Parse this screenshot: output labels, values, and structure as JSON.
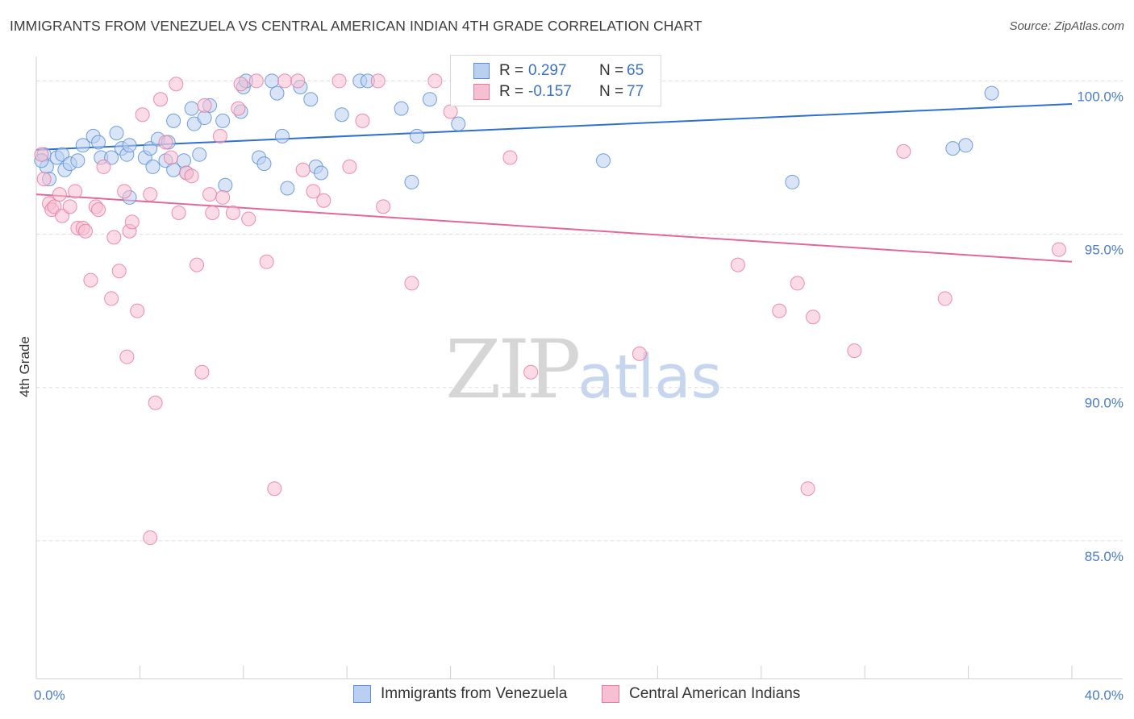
{
  "title": "IMMIGRANTS FROM VENEZUELA VS CENTRAL AMERICAN INDIAN 4TH GRADE CORRELATION CHART",
  "source": "Source: ZipAtlas.com",
  "watermark": {
    "zip": "ZIP",
    "atlas": "atlas"
  },
  "legend": {
    "rows": [
      {
        "r_label": "R =",
        "r_value": "0.297",
        "n_label": "N =",
        "n_value": "65",
        "color": "#5b8fd9",
        "fill": "#b9d0f1"
      },
      {
        "r_label": "R =",
        "r_value": "-0.157",
        "n_label": "N =",
        "n_value": "77",
        "color": "#e87aa0",
        "fill": "#f7c0d2"
      }
    ]
  },
  "bottom_legend": [
    {
      "label": "Immigrants from Venezuela",
      "color": "#5b8fd9",
      "fill": "#b9d0f1"
    },
    {
      "label": "Central American Indians",
      "color": "#e87aa0",
      "fill": "#f7c0d2"
    }
  ],
  "chart_data": {
    "type": "scatter",
    "title": "IMMIGRANTS FROM VENEZUELA VS CENTRAL AMERICAN INDIAN 4TH GRADE CORRELATION CHART",
    "xlabel": "",
    "ylabel": "4th Grade",
    "xlim": [
      0,
      40
    ],
    "ylim": [
      80.5,
      100.8
    ],
    "x_tick_labels": [
      {
        "value": 0,
        "label": "0.0%"
      },
      {
        "value": 40,
        "label": "40.0%"
      }
    ],
    "y_tick_labels": [
      {
        "value": 100,
        "label": "100.0%"
      },
      {
        "value": 95,
        "label": "95.0%"
      },
      {
        "value": 90,
        "label": "90.0%"
      },
      {
        "value": 85,
        "label": "85.0%"
      }
    ],
    "grid": true,
    "legend_position": "top-center",
    "series": [
      {
        "name": "Immigrants from Venezuela",
        "color": "#5b8fd9",
        "fill": "#b9d0f1",
        "trend": {
          "x": [
            0,
            40
          ],
          "y": [
            97.75,
            99.25
          ]
        },
        "points": [
          [
            0.3,
            97.6
          ],
          [
            0.4,
            97.2
          ],
          [
            0.5,
            96.8
          ],
          [
            0.8,
            97.5
          ],
          [
            1.0,
            97.6
          ],
          [
            1.1,
            97.1
          ],
          [
            1.3,
            97.3
          ],
          [
            1.6,
            97.4
          ],
          [
            1.8,
            97.9
          ],
          [
            2.2,
            98.2
          ],
          [
            2.4,
            98.0
          ],
          [
            2.5,
            97.5
          ],
          [
            2.9,
            97.5
          ],
          [
            3.1,
            98.3
          ],
          [
            3.3,
            97.8
          ],
          [
            3.5,
            97.6
          ],
          [
            3.6,
            96.2
          ],
          [
            3.6,
            97.9
          ],
          [
            4.2,
            97.5
          ],
          [
            4.4,
            97.8
          ],
          [
            4.5,
            97.2
          ],
          [
            4.7,
            98.1
          ],
          [
            5.0,
            97.4
          ],
          [
            5.1,
            98.0
          ],
          [
            5.3,
            98.7
          ],
          [
            5.3,
            97.1
          ],
          [
            5.7,
            97.4
          ],
          [
            5.8,
            97.0
          ],
          [
            6.0,
            99.1
          ],
          [
            6.1,
            98.6
          ],
          [
            6.3,
            97.6
          ],
          [
            6.5,
            98.8
          ],
          [
            6.7,
            99.2
          ],
          [
            7.2,
            98.7
          ],
          [
            7.3,
            96.6
          ],
          [
            7.9,
            99.0
          ],
          [
            8.0,
            99.8
          ],
          [
            8.1,
            100.0
          ],
          [
            8.6,
            97.5
          ],
          [
            8.8,
            97.3
          ],
          [
            9.1,
            100.0
          ],
          [
            9.3,
            99.6
          ],
          [
            9.5,
            98.2
          ],
          [
            9.7,
            96.5
          ],
          [
            10.2,
            99.8
          ],
          [
            10.6,
            99.4
          ],
          [
            10.8,
            97.2
          ],
          [
            11.0,
            97.0
          ],
          [
            11.8,
            98.9
          ],
          [
            12.5,
            100.0
          ],
          [
            12.8,
            100.0
          ],
          [
            14.1,
            99.1
          ],
          [
            14.5,
            96.7
          ],
          [
            14.7,
            98.2
          ],
          [
            15.2,
            99.4
          ],
          [
            16.3,
            98.6
          ],
          [
            16.6,
            100.0
          ],
          [
            17.6,
            99.9
          ],
          [
            19.3,
            100.0
          ],
          [
            21.9,
            97.4
          ],
          [
            29.2,
            96.7
          ],
          [
            35.4,
            97.8
          ],
          [
            35.9,
            97.9
          ],
          [
            36.9,
            99.6
          ],
          [
            0.2,
            97.4
          ]
        ]
      },
      {
        "name": "Central American Indians",
        "color": "#e87aa0",
        "fill": "#f7c0d2",
        "trend": {
          "x": [
            0,
            40
          ],
          "y": [
            96.3,
            94.1
          ]
        },
        "points": [
          [
            0.2,
            97.6
          ],
          [
            0.3,
            96.8
          ],
          [
            0.5,
            96.0
          ],
          [
            0.6,
            95.8
          ],
          [
            0.7,
            95.9
          ],
          [
            0.9,
            96.3
          ],
          [
            1.0,
            95.6
          ],
          [
            1.3,
            95.9
          ],
          [
            1.5,
            96.4
          ],
          [
            1.6,
            95.2
          ],
          [
            1.8,
            95.2
          ],
          [
            1.9,
            95.1
          ],
          [
            2.1,
            93.5
          ],
          [
            2.3,
            95.9
          ],
          [
            2.4,
            95.8
          ],
          [
            2.6,
            97.2
          ],
          [
            2.9,
            92.9
          ],
          [
            3.0,
            94.9
          ],
          [
            3.2,
            93.8
          ],
          [
            3.4,
            96.4
          ],
          [
            3.5,
            91.0
          ],
          [
            3.6,
            95.1
          ],
          [
            3.7,
            95.4
          ],
          [
            3.9,
            92.5
          ],
          [
            4.1,
            98.9
          ],
          [
            4.4,
            96.3
          ],
          [
            4.6,
            89.5
          ],
          [
            4.8,
            99.4
          ],
          [
            5.0,
            98.0
          ],
          [
            5.2,
            97.5
          ],
          [
            5.4,
            99.9
          ],
          [
            5.5,
            95.7
          ],
          [
            5.8,
            97.0
          ],
          [
            6.0,
            96.9
          ],
          [
            6.2,
            94.0
          ],
          [
            6.4,
            90.5
          ],
          [
            6.5,
            99.2
          ],
          [
            6.7,
            96.3
          ],
          [
            6.8,
            95.7
          ],
          [
            7.1,
            98.2
          ],
          [
            7.2,
            96.2
          ],
          [
            7.6,
            95.7
          ],
          [
            7.8,
            99.1
          ],
          [
            7.9,
            99.9
          ],
          [
            8.2,
            95.5
          ],
          [
            8.5,
            100.0
          ],
          [
            8.9,
            94.1
          ],
          [
            9.2,
            86.7
          ],
          [
            9.6,
            100.0
          ],
          [
            10.1,
            100.0
          ],
          [
            10.3,
            97.1
          ],
          [
            10.7,
            96.4
          ],
          [
            11.1,
            96.1
          ],
          [
            11.7,
            100.0
          ],
          [
            12.1,
            97.2
          ],
          [
            12.6,
            98.7
          ],
          [
            13.2,
            100.0
          ],
          [
            13.4,
            95.9
          ],
          [
            14.5,
            93.4
          ],
          [
            15.4,
            100.0
          ],
          [
            16.0,
            99.0
          ],
          [
            17.0,
            100.0
          ],
          [
            18.3,
            97.5
          ],
          [
            19.1,
            90.5
          ],
          [
            20.3,
            99.8
          ],
          [
            22.9,
            99.9
          ],
          [
            23.3,
            91.1
          ],
          [
            27.1,
            94.0
          ],
          [
            28.7,
            92.5
          ],
          [
            29.4,
            93.4
          ],
          [
            29.8,
            86.7
          ],
          [
            30.0,
            92.3
          ],
          [
            31.6,
            91.2
          ],
          [
            33.5,
            97.7
          ],
          [
            35.1,
            92.9
          ],
          [
            39.5,
            94.5
          ],
          [
            4.4,
            85.1
          ]
        ]
      }
    ]
  }
}
